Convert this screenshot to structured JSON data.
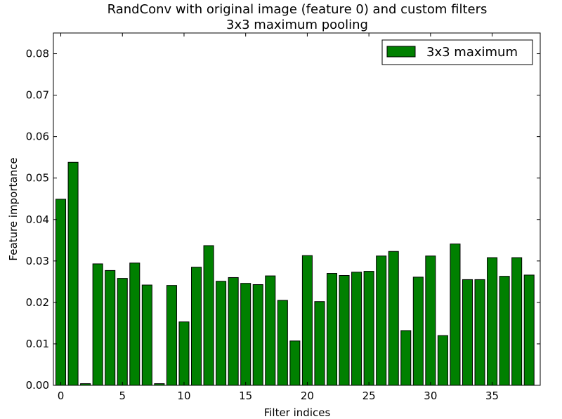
{
  "chart_data": {
    "type": "bar",
    "title": "RandConv with original image (feature 0) and custom filters",
    "subtitle": "3x3 maximum pooling",
    "xlabel": "Filter indices",
    "ylabel": "Feature importance",
    "xlim": [
      -0.6,
      38.9
    ],
    "ylim": [
      0,
      0.085
    ],
    "xticks": [
      0,
      5,
      10,
      15,
      20,
      25,
      30,
      35
    ],
    "yticks": [
      0.0,
      0.01,
      0.02,
      0.03,
      0.04,
      0.05,
      0.06,
      0.07,
      0.08
    ],
    "ytick_labels": [
      "0.00",
      "0.01",
      "0.02",
      "0.03",
      "0.04",
      "0.05",
      "0.06",
      "0.07",
      "0.08"
    ],
    "grid": false,
    "legend_position": "top-right",
    "series": [
      {
        "name": "3x3 maximum",
        "color": "#008000",
        "x": [
          0,
          1,
          2,
          3,
          4,
          5,
          6,
          7,
          8,
          9,
          10,
          11,
          12,
          13,
          14,
          15,
          16,
          17,
          18,
          19,
          20,
          21,
          22,
          23,
          24,
          25,
          26,
          27,
          28,
          29,
          30,
          31,
          32,
          33,
          34,
          35,
          36,
          37,
          38
        ],
        "values": [
          0.0449,
          0.0538,
          0.0004,
          0.0293,
          0.0277,
          0.0258,
          0.0295,
          0.0242,
          0.0004,
          0.0241,
          0.0153,
          0.0285,
          0.0337,
          0.0251,
          0.026,
          0.0246,
          0.0243,
          0.0264,
          0.0205,
          0.0107,
          0.0313,
          0.0202,
          0.027,
          0.0265,
          0.0273,
          0.0275,
          0.0312,
          0.0323,
          0.0132,
          0.0261,
          0.0312,
          0.012,
          0.0341,
          0.0255,
          0.0255,
          0.0308,
          0.0263,
          0.0308,
          0.0266
        ]
      }
    ]
  }
}
